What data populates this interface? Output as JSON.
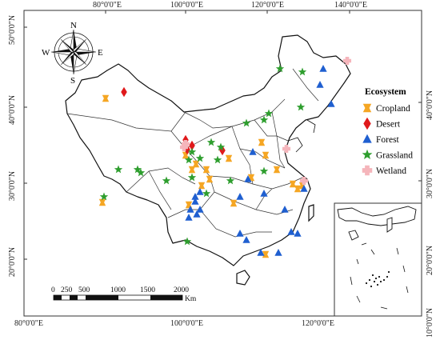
{
  "map": {
    "top_lon_labels": [
      "80°0'0\"E",
      "100°0'0\"E",
      "120°0'0\"E",
      "140°0'0\"E"
    ],
    "bottom_lon_labels": [
      "80°0'0\"E",
      "100°0'0\"E",
      "120°0'0\"E"
    ],
    "left_lat_labels": [
      "50°0'0\"N",
      "40°0'0\"N",
      "30°0'0\"N",
      "20°0'0\"N"
    ],
    "right_lat_labels": [
      "40°0'0\"N",
      "30°0'0\"N",
      "20°0'0\"N",
      "10°0'0\"N"
    ],
    "compass": {
      "north": "N",
      "south": "S",
      "east": "E",
      "west": "W"
    },
    "scale_bar": {
      "ticks": [
        "0",
        "250",
        "500",
        "1000",
        "1500",
        "2000"
      ],
      "unit": "Km"
    },
    "colors": {
      "cropland": "#f5a623",
      "desert": "#e0191b",
      "forest": "#1f5fd0",
      "grassland": "#2e9e2e",
      "wetland": "#f5b5bb"
    }
  },
  "legend": {
    "title": "Ecosystem",
    "items": [
      {
        "key": "cropland",
        "label": "Cropland",
        "symbol": "cropland-icon"
      },
      {
        "key": "desert",
        "label": "Desert",
        "symbol": "desert-icon"
      },
      {
        "key": "forest",
        "label": "Forest",
        "symbol": "forest-icon"
      },
      {
        "key": "grassland",
        "label": "Grassland",
        "symbol": "grassland-icon"
      },
      {
        "key": "wetland",
        "label": "Wetland",
        "symbol": "wetland-icon"
      }
    ]
  }
}
